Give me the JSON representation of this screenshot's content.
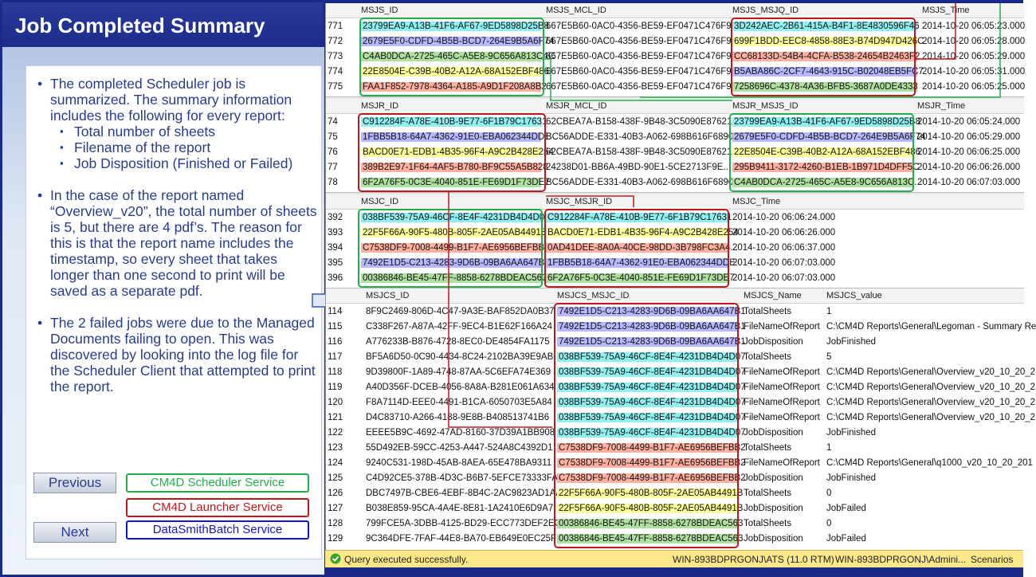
{
  "slide": {
    "title": "Job Completed Summary",
    "bullets": [
      {
        "text": "The completed Scheduler job is summarized. The summary information includes the following for every report:",
        "sub": [
          "Total number of sheets",
          "Filename of the report",
          "Job Disposition (Finished or Failed)"
        ]
      },
      {
        "text": "In the case of the report named “Overview_v20”, the total number of sheets is 5, but there are 4 pdf’s. The reason for this is that the report name includes the timestamp, so every sheet that takes longer than one second to print will be saved as a separate pdf.",
        "sub": []
      },
      {
        "text": "The 2 failed jobs were due to the Managed Documents failing to open. This was discovered by looking into the log file for the Scheduler Client that attempted to print the report.",
        "sub": []
      }
    ],
    "buttons": {
      "previous": "Previous",
      "next": "Next"
    },
    "legend": [
      {
        "label": "CM4D Scheduler Service",
        "color": "#1fb04a"
      },
      {
        "label": "CM4D Launcher Service",
        "color": "#c0181a"
      },
      {
        "label": "DataSmithBatch Service",
        "color": "#1414e0"
      }
    ]
  },
  "grids": {
    "msjs": {
      "headers": [
        "MSJS_ID",
        "MSJS_MCL_ID",
        "MSJS_MSJQ_ID",
        "MSJS_Time"
      ],
      "rows": [
        [
          "771",
          "23799EA9-A13B-41F6-AF67-9ED5898D25B8",
          "667E5B60-0AC0-4356-BE59-EF0471C476F9",
          "3D242AEC-2B61-415A-B4F1-8E4830596F46",
          "2014-10-20 06:05:23.000"
        ],
        [
          "772",
          "2679E5F0-CDFD-4B5B-BCD7-264E9B5A6F74",
          "667E5B60-0AC0-4356-BE59-EF0471C476F9",
          "699F1BDD-EEC8-4858-88E3-B74D947D426C",
          "2014-10-20 06:05:28.000"
        ],
        [
          "773",
          "C4AB0DCA-2725-465C-A5E8-9C656A813C4C",
          "667E5B60-0AC0-4356-BE59-EF0471C476F9",
          "CC68133D-54B4-4CFA-B538-24654B2463F2",
          "2014-10-20 06:05:29.000"
        ],
        [
          "774",
          "22E8504E-C39B-40B2-A12A-68A152EBF486",
          "667E5B60-0AC0-4356-BE59-EF0471C476F9",
          "B5ABA86C-2CF7-4643-915C-B02048EB5FC7",
          "2014-10-20 06:05:31.000"
        ],
        [
          "775",
          "FAA1F852-7978-4364-A185-A9D1F208A8B2",
          "667E5B60-0AC0-4356-BE59-EF0471C476F9",
          "7258696C-4378-4A36-BFB5-3687A0DE4333",
          "2014-10-20 06:05:25.000"
        ]
      ]
    },
    "msjr": {
      "headers": [
        "MSJR_ID",
        "MSJR_MCL_ID",
        "MSJR_MSJS_ID",
        "MSJR_Time"
      ],
      "rows": [
        [
          "74",
          "C912284F-A78E-410B-9E77-6F1B79C17631",
          "62CBEA7A-B158-438F-9B48-3C5090E87621",
          "23799EA9-A13B-41F6-AF67-9ED5898D25B8",
          "2014-10-20 06:05:24.000"
        ],
        [
          "75",
          "1FBB5B18-64A7-4362-91E0-EBA062344DDE",
          "BC56ADDE-E331-40B3-A062-698B616F6890",
          "2679E5F0-CDFD-4B5B-BCD7-264E9B5A6F74",
          "2014-10-20 06:05:29.000"
        ],
        [
          "76",
          "BACD0E71-EDB1-4B35-96F4-A9C2B428E254",
          "62CBEA7A-B158-438F-9B48-3C5090E87621",
          "22E8504E-C39B-40B2-A12A-68A152EBF486",
          "2014-10-20 06:06:25.000"
        ],
        [
          "77",
          "389B2E97-1F64-4AF5-B780-BF9C55A5B828",
          "24238D01-BB6A-49BD-90E1-5CE2713F9E...",
          "295B9411-3172-4260-B1EB-1B971D4DFF5C",
          "2014-10-20 06:06:26.000"
        ],
        [
          "78",
          "6F2A76F5-0C3E-4040-851E-FE69D1F73DE7",
          "BC56ADDE-E331-40B3-A062-698B616F6890",
          "C4AB0DCA-2725-465C-A5E8-9C656A813C...",
          "2014-10-20 06:07:03.000"
        ]
      ]
    },
    "msjc": {
      "headers": [
        "MSJC_ID",
        "MSJC_MSJR_ID",
        "MSJC_Time"
      ],
      "rows": [
        [
          "392",
          "038BF539-75A9-46CF-8E4F-4231DB4D4D07",
          "C912284F-A78E-410B-9E77-6F1B79C17631",
          "2014-10-20 06:06:24.000"
        ],
        [
          "393",
          "22F5F66A-90F5-480B-805F-2AE05AB4491B",
          "BACD0E71-EDB1-4B35-96F4-A9C2B428E254",
          "2014-10-20 06:06:26.000"
        ],
        [
          "394",
          "C7538DF9-7008-4499-B1F7-AE6956BEFBB2",
          "0AD41DEE-8A0A-40CE-98DD-3B798FC3A4...",
          "2014-10-20 06:06:37.000"
        ],
        [
          "395",
          "7492E1D5-C213-4283-9D6B-09BA6AA647B1",
          "1FBB5B18-64A7-4362-91E0-EBA062344DDE",
          "2014-10-20 06:07:03.000"
        ],
        [
          "396",
          "00386846-BE45-47FF-8858-6278BDEAC563",
          "6F2A76F5-0C3E-4040-851E-FE69D1F73DE7",
          "2014-10-20 06:07:03.000"
        ]
      ]
    },
    "msjcs": {
      "headers": [
        "MSJCS_ID",
        "MSJCS_MSJC_ID",
        "MSJCS_Name",
        "MSJCS_value"
      ],
      "rows": [
        [
          "114",
          "8F9C2469-806D-4C47-9A3E-BAF852DA0B37",
          "7492E1D5-C213-4283-9D6B-09BA6AA647B1",
          "TotalSheets",
          "1"
        ],
        [
          "115",
          "C338F267-A87A-42FF-9EC4-B1E62F166A24",
          "7492E1D5-C213-4283-9D6B-09BA6AA647B1",
          "FileNameOfReport",
          "C:\\CM4D Reports\\General\\Legoman - Summary Re"
        ],
        [
          "116",
          "A776233B-B876-4728-8EC0-DE4854FA1175",
          "7492E1D5-C213-4283-9D6B-09BA6AA647B1",
          "JobDisposition",
          "JobFinished"
        ],
        [
          "117",
          "BF5A6D50-0C90-4434-8C24-2102BA39E9AB",
          "038BF539-75A9-46CF-8E4F-4231DB4D4D07",
          "TotalSheets",
          "5"
        ],
        [
          "118",
          "9D39800F-1A89-4748-87AA-5C6EFA74E369",
          "038BF539-75A9-46CF-8E4F-4231DB4D4D07",
          "FileNameOfReport",
          "C:\\CM4D Reports\\General\\Overview_v20_10_20_2"
        ],
        [
          "119",
          "A40D356F-DCEB-4056-8A8A-B281E061A634",
          "038BF539-75A9-46CF-8E4F-4231DB4D4D07",
          "FileNameOfReport",
          "C:\\CM4D Reports\\General\\Overview_v20_10_20_2"
        ],
        [
          "120",
          "F8A7114D-EEE0-4491-B1CA-6050703E5A84",
          "038BF539-75A9-46CF-8E4F-4231DB4D4D07",
          "FileNameOfReport",
          "C:\\CM4D Reports\\General\\Overview_v20_10_20_2"
        ],
        [
          "121",
          "D4C83710-A266-4188-9E8B-B408513741B6",
          "038BF539-75A9-46CF-8E4F-4231DB4D4D07",
          "FileNameOfReport",
          "C:\\CM4D Reports\\General\\Overview_v20_10_20_2"
        ],
        [
          "122",
          "EEEE5B9C-4692-47AD-8160-37D39A1BB908",
          "038BF539-75A9-46CF-8E4F-4231DB4D4D07",
          "JobDisposition",
          "JobFinished"
        ],
        [
          "123",
          "55D492EB-59CC-4253-A447-524A8C4392D1",
          "C7538DF9-7008-4499-B1F7-AE6956BEFBB2",
          "TotalSheets",
          "1"
        ],
        [
          "124",
          "9240C531-198D-45AB-8AEA-65E478BA9311",
          "C7538DF9-7008-4499-B1F7-AE6956BEFBB2",
          "FileNameOfReport",
          "C:\\CM4D Reports\\General\\q1000_v20_10_20_201"
        ],
        [
          "125",
          "C4D92CE5-378B-4D3C-B6B7-5EFCE73333FA",
          "C7538DF9-7008-4499-B1F7-AE6956BEFBB2",
          "JobDisposition",
          "JobFinished"
        ],
        [
          "126",
          "DBC7497B-CBE6-4EBF-8B4C-2AC9823AD1AA",
          "22F5F66A-90F5-480B-805F-2AE05AB4491B",
          "TotalSheets",
          "0"
        ],
        [
          "127",
          "B038E859-95CA-4A4E-8E81-1A2410E6D9A7",
          "22F5F66A-90F5-480B-805F-2AE05AB4491B",
          "JobDisposition",
          "JobFailed"
        ],
        [
          "128",
          "799FCE5A-3DBB-4125-BD29-ECC773DEF2EC",
          "00386846-BE45-47FF-8858-6278BDEAC563",
          "TotalSheets",
          "0"
        ],
        [
          "129",
          "9C364DFE-7FAF-44E8-BA70-EB649E0EC25F",
          "00386846-BE45-47FF-8858-6278BDEAC563",
          "JobDisposition",
          "JobFailed"
        ]
      ]
    }
  },
  "status": {
    "message": "Query executed successfully.",
    "server": "WIN-893BDPRGONJ\\ATS (11.0 RTM)",
    "user": "WIN-893BDPRGONJ\\Admini...",
    "db": "Scenarios"
  },
  "colors": {
    "cyan": "#8ff0f0",
    "purple": "#b8b8ff",
    "green": "#b0e0a0",
    "yellow": "#ffff99",
    "salmon": "#ffb0a0"
  }
}
